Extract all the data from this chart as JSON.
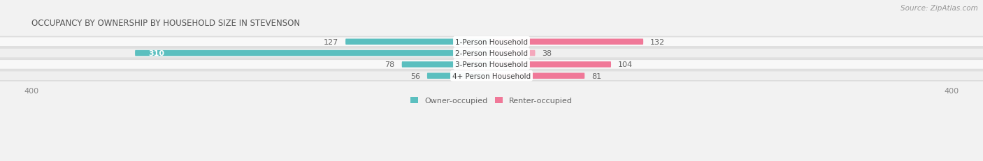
{
  "title": "OCCUPANCY BY OWNERSHIP BY HOUSEHOLD SIZE IN STEVENSON",
  "source": "Source: ZipAtlas.com",
  "categories": [
    "1-Person Household",
    "2-Person Household",
    "3-Person Household",
    "4+ Person Household"
  ],
  "owner_values": [
    127,
    310,
    78,
    56
  ],
  "renter_values": [
    132,
    38,
    104,
    81
  ],
  "owner_color": "#5BBFBF",
  "owner_color_2": "#7BCFCF",
  "renter_color": "#F07898",
  "renter_color_light": "#F4A8BC",
  "axis_limit": 400,
  "bar_height": 0.52,
  "bg_color": "#f2f2f2",
  "row_bg_light": "#f8f8f8",
  "row_bg_dark": "#efefef",
  "row_border": "#dddddd",
  "title_fontsize": 8.5,
  "source_fontsize": 7.5,
  "bar_label_fontsize": 8,
  "cat_label_fontsize": 7.5,
  "axis_label_fontsize": 8
}
